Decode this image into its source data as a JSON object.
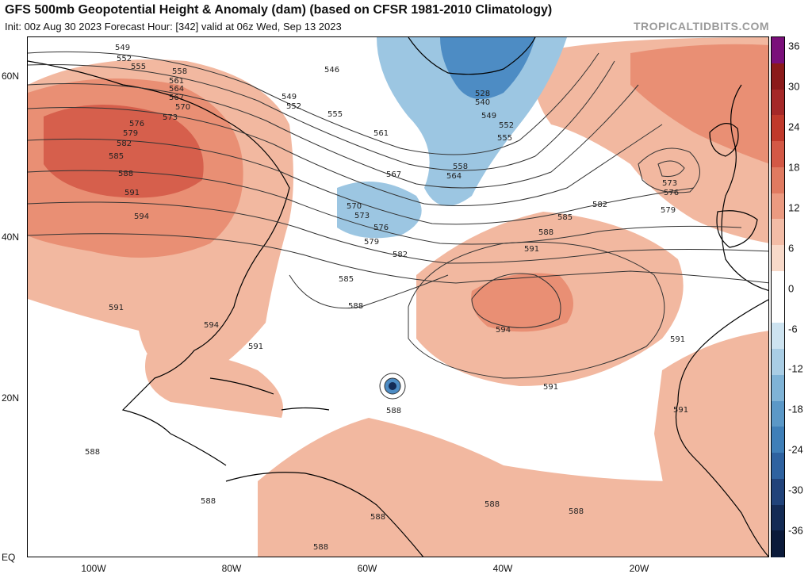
{
  "header": {
    "title": "GFS 500mb Geopotential Height & Anomaly (dam) (based on CFSR 1981-2010 Climatology)",
    "subtitle": "Init: 00z Aug 30 2023   Forecast Hour: [342]   valid at 06z Wed, Sep 13 2023",
    "brand": "TROPICALTIDBITS.COM"
  },
  "axes": {
    "lat_labels": [
      "60N",
      "40N",
      "20N",
      "EQ"
    ],
    "lon_labels": [
      "100W",
      "80W",
      "60W",
      "40W",
      "20W"
    ]
  },
  "colorbar": {
    "labels": [
      "36",
      "30",
      "24",
      "18",
      "12",
      "6",
      "0",
      "-6",
      "-12",
      "-18",
      "-24",
      "-30",
      "-36"
    ],
    "colors": [
      "#7a0f7a",
      "#8b1a1a",
      "#a52828",
      "#c0392b",
      "#d35845",
      "#e07a60",
      "#eb9a80",
      "#f3bca6",
      "#f8d9c9",
      "#ffffff",
      "#ffffff",
      "#cde3f0",
      "#a9cde4",
      "#7fb3d6",
      "#5b98c7",
      "#3f7fb8",
      "#2e62a0",
      "#21437a",
      "#142b55",
      "#0b1a3a"
    ]
  },
  "contour_labels": [
    "549",
    "552",
    "555",
    "558",
    "561",
    "564",
    "567",
    "570",
    "573",
    "576",
    "579",
    "582",
    "585",
    "588",
    "591",
    "594",
    "546",
    "549",
    "552",
    "555",
    "561",
    "567",
    "570",
    "573",
    "576",
    "579",
    "582",
    "585",
    "588",
    "528",
    "540",
    "549",
    "552",
    "555",
    "558",
    "564",
    "585",
    "582",
    "579",
    "576",
    "573",
    "588",
    "591",
    "594",
    "591",
    "591",
    "591",
    "588",
    "591",
    "594",
    "591",
    "588",
    "588",
    "588",
    "588",
    "588",
    "588"
  ],
  "legend_colors": {
    "warm": "#f2b8a0",
    "warm_mid": "#e98f74",
    "warm_strong": "#d65f4c",
    "cool": "#9cc6e2",
    "cool_strong": "#4d8cc4"
  }
}
